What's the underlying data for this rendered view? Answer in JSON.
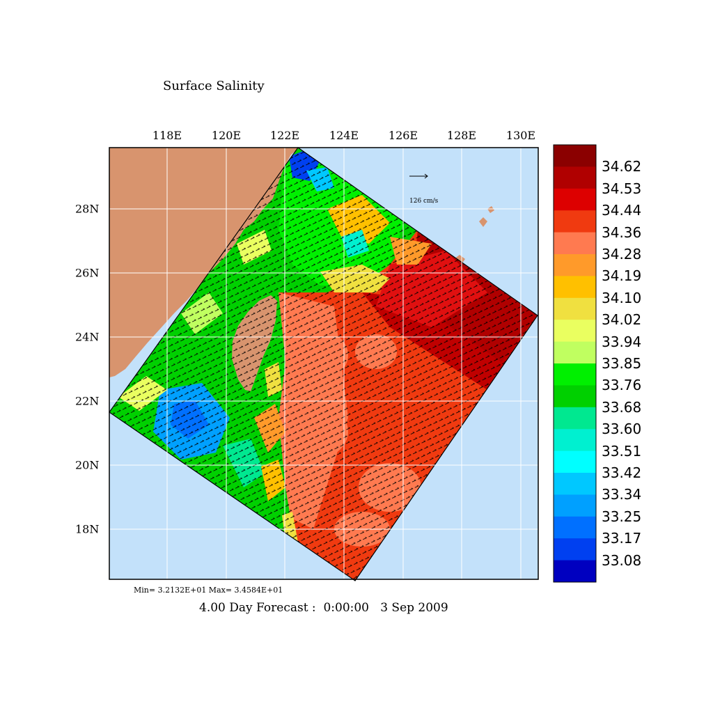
{
  "title": "Surface Salinity",
  "lon_labels": [
    "118E",
    "120E",
    "122E",
    "124E",
    "126E",
    "128E",
    "130E"
  ],
  "lat_labels": [
    "28N",
    "26N",
    "24N",
    "22N",
    "20N",
    "18N"
  ],
  "colorbar": {
    "labels": [
      "34.62",
      "34.53",
      "34.44",
      "34.36",
      "34.28",
      "34.19",
      "34.10",
      "34.02",
      "33.94",
      "33.85",
      "33.76",
      "33.68",
      "33.60",
      "33.51",
      "33.42",
      "33.34",
      "33.25",
      "33.17",
      "33.08"
    ],
    "colors": [
      "#8b0000",
      "#b00000",
      "#dd0000",
      "#f03a10",
      "#ff7a50",
      "#ff9a2a",
      "#ffc000",
      "#f0e040",
      "#eaff60",
      "#c0ff60",
      "#00f000",
      "#00d000",
      "#00e890",
      "#00f0d0",
      "#00ffff",
      "#00c8ff",
      "#00a0ff",
      "#0070ff",
      "#0040f0",
      "#0000c0"
    ]
  },
  "scale_vector_label": "126 cm/s",
  "minmax_text": "Min= 3.2132E+01   Max= 3.4584E+01",
  "footer_text": "4.00 Day Forecast :  0:00:00   3 Sep 2009",
  "colors": {
    "ocean": "#c3e1fa",
    "land": "#d8946e",
    "grid": "#ffffff"
  }
}
